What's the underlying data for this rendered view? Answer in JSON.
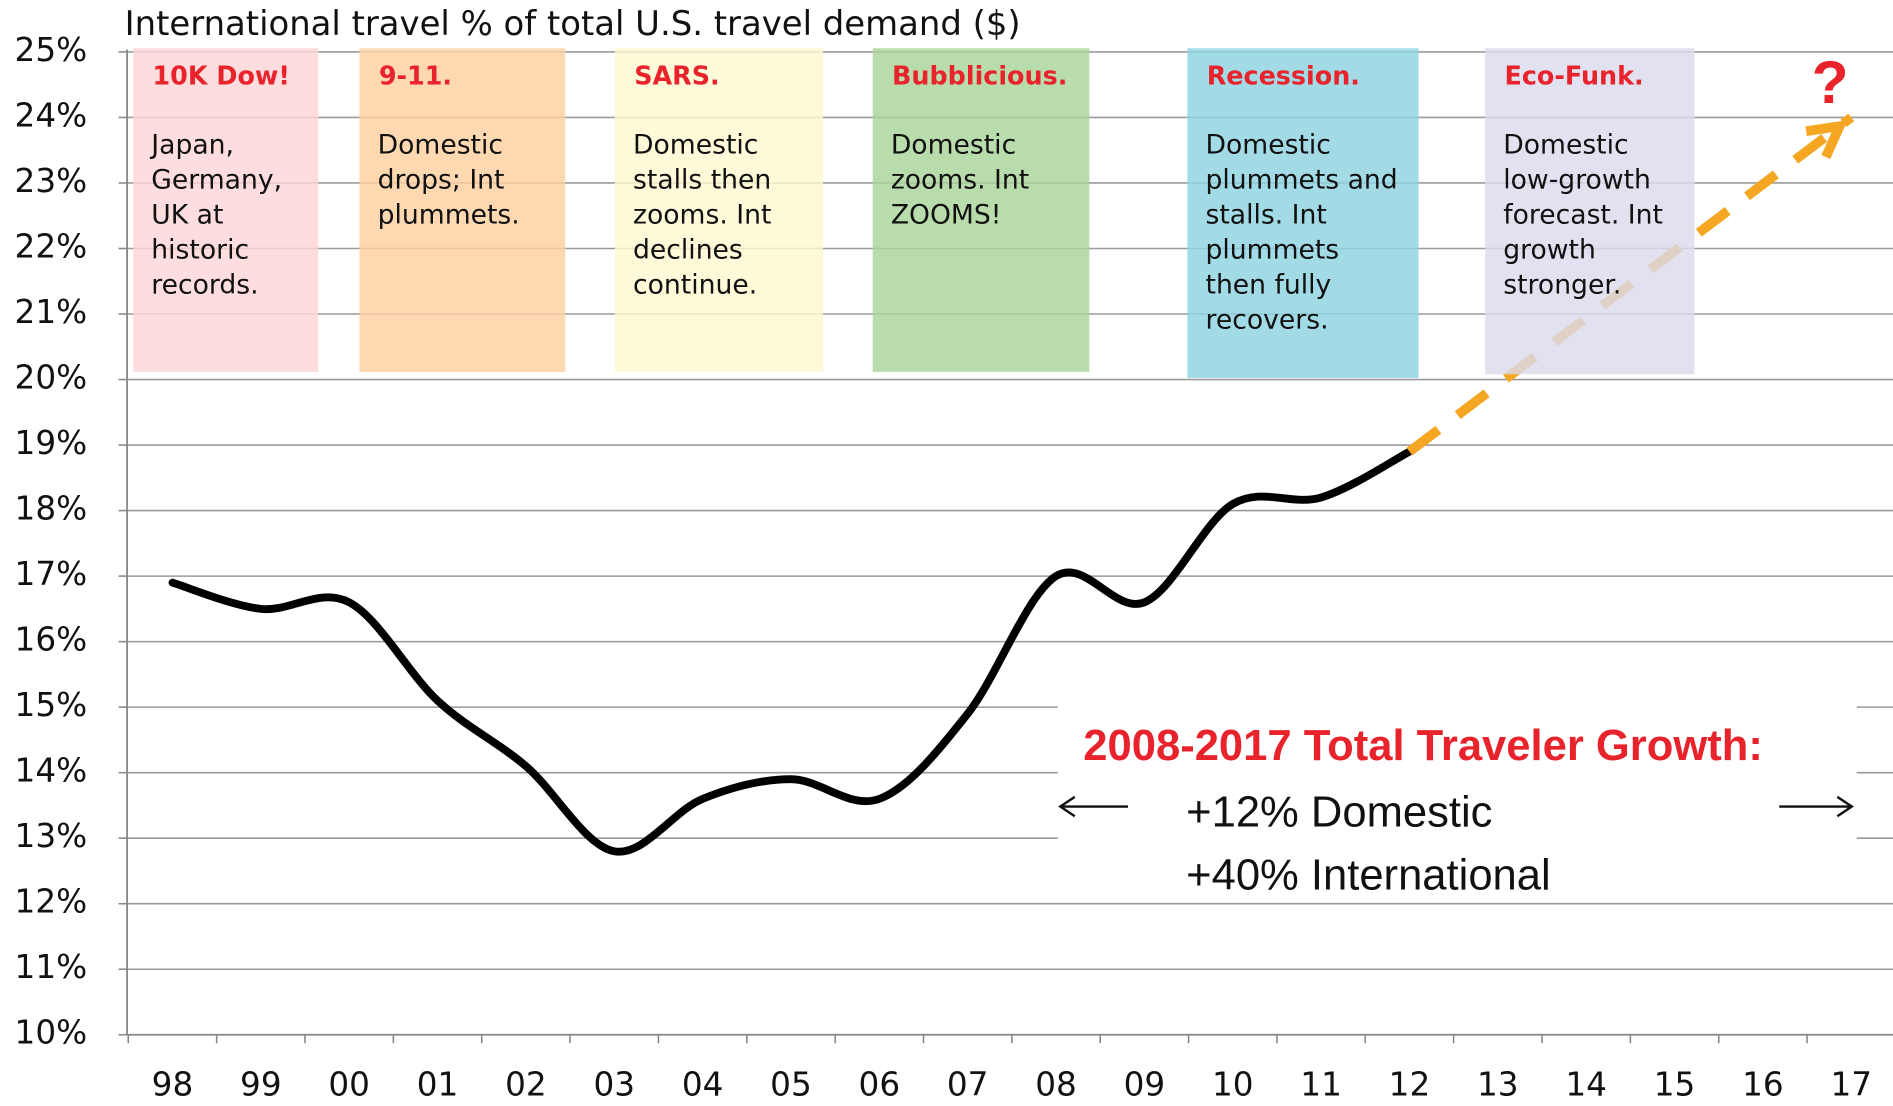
{
  "chart_data": {
    "type": "line",
    "title": "International travel % of total U.S. travel demand ($)",
    "categories": [
      "98",
      "99",
      "00",
      "01",
      "02",
      "03",
      "04",
      "05",
      "06",
      "07",
      "08",
      "09",
      "10",
      "11",
      "12",
      "13",
      "14",
      "15",
      "16",
      "17"
    ],
    "series": [
      {
        "color": "#000000",
        "values": [
          16.9,
          16.5,
          16.6,
          15.1,
          14.1,
          12.8,
          13.6,
          13.9,
          13.6,
          14.9,
          17.0,
          16.6,
          18.1,
          18.2,
          18.9,
          null,
          null,
          null,
          null,
          null
        ]
      },
      {
        "color": "#f5a623",
        "style": "dashed",
        "values": [
          null,
          null,
          null,
          null,
          null,
          null,
          null,
          null,
          null,
          null,
          null,
          null,
          null,
          null,
          18.9,
          19.92,
          20.94,
          21.96,
          22.98,
          24.0
        ]
      }
    ],
    "ylim": [
      10,
      25
    ],
    "yticks": [
      {
        "value": 10,
        "label": "10%"
      },
      {
        "value": 11,
        "label": "11%"
      },
      {
        "value": 12,
        "label": "12%"
      },
      {
        "value": 13,
        "label": "13%"
      },
      {
        "value": 14,
        "label": "14%"
      },
      {
        "value": 15,
        "label": "15%"
      },
      {
        "value": 16,
        "label": "16%"
      },
      {
        "value": 17,
        "label": "17%"
      },
      {
        "value": 18,
        "label": "18%"
      },
      {
        "value": 19,
        "label": "19%"
      },
      {
        "value": 20,
        "label": "20%"
      },
      {
        "value": 21,
        "label": "21%"
      },
      {
        "value": 22,
        "label": "22%"
      },
      {
        "value": 23,
        "label": "23%"
      },
      {
        "value": 24,
        "label": "24%"
      },
      {
        "value": 25,
        "label": "25%"
      }
    ],
    "grid": true,
    "annotations": [
      {
        "title": "10K Dow!",
        "lines": [
          "Japan,",
          "Germany,",
          "UK at",
          "historic",
          "records."
        ],
        "color": "#fdd5d5"
      },
      {
        "title": "9-11.",
        "lines": [
          "Domestic",
          "drops; Int",
          "plummets."
        ],
        "color": "#fdd0a0"
      },
      {
        "title": "SARS.",
        "lines": [
          "Domestic",
          "stalls then",
          "zooms. Int",
          "declines",
          "continue."
        ],
        "color": "#fef8d0"
      },
      {
        "title": "Bubblicious.",
        "lines": [
          "Domestic",
          "zooms.  Int",
          "ZOOMS!"
        ],
        "color": "#a9d49a"
      },
      {
        "title": "Recession.",
        "lines": [
          "Domestic",
          "plummets and",
          "stalls.  Int",
          "plummets",
          "then fully",
          "recovers."
        ],
        "color": "#8dd3e0"
      },
      {
        "title": "Eco-Funk.",
        "lines": [
          "Domestic",
          "low-growth",
          "forecast.  Int",
          "growth",
          "stronger."
        ],
        "color": "#dcdaec"
      }
    ],
    "question_mark": "?",
    "note": {
      "title": "2008-2017 Total Traveler Growth:",
      "lines": [
        "+12%  Domestic",
        "+40%  International"
      ]
    }
  }
}
